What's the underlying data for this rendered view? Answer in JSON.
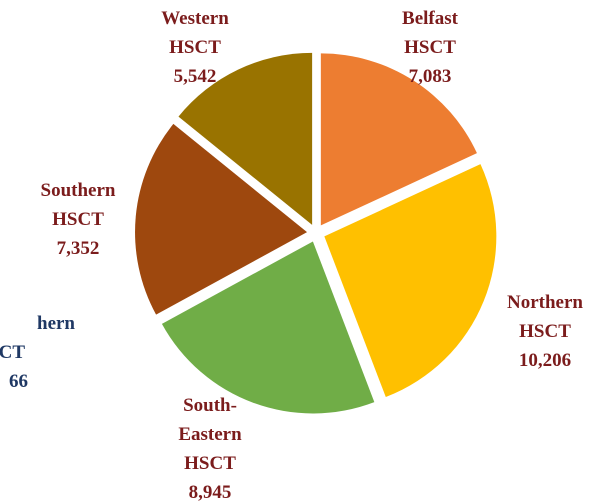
{
  "chart_data": {
    "type": "pie",
    "categories": [
      "Belfast HSCT",
      "Northern HSCT",
      "South-Eastern HSCT",
      "Southern HSCT",
      "Western HSCT"
    ],
    "values": [
      7083,
      10206,
      8945,
      7352,
      5542
    ],
    "value_labels": [
      "7,083",
      "10,206",
      "8,945",
      "7,352",
      "5,542"
    ],
    "colors": [
      "#ED7D31",
      "#FFC000",
      "#70AD47",
      "#9E480E",
      "#997300"
    ],
    "clipped_label_lines": [
      "hern",
      "CT",
      "66"
    ]
  }
}
